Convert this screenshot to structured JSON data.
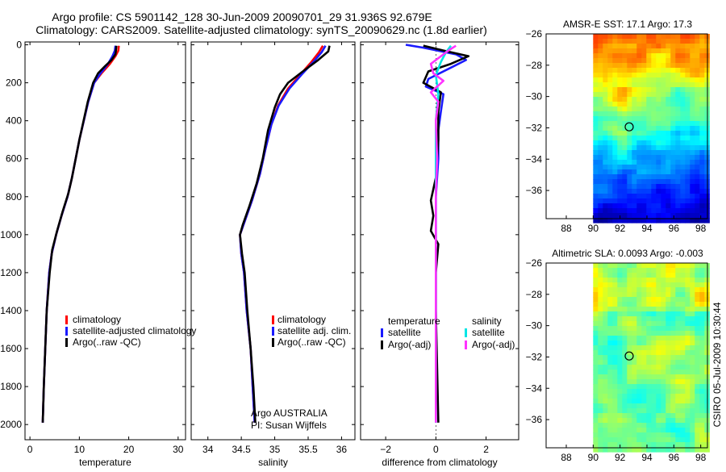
{
  "header": {
    "line1": "Argo profile: CS 5901142_128 30-Jun-2009 20090701_29 31.936S 92.679E",
    "line2": "Climatology: CARS2009. Satellite-adjusted climatology: synTS_20090629.nc (1.8d earlier)"
  },
  "colors": {
    "red": "#ff0000",
    "blue": "#1a1aff",
    "black": "#000000",
    "cyan": "#00e5e5",
    "magenta": "#ff33ff"
  },
  "chart_data": [
    {
      "id": "temperature",
      "type": "line",
      "xlabel": "temperature",
      "ylabel": "",
      "xlim": [
        -1,
        31.5
      ],
      "ylim": [
        2080,
        -15
      ],
      "xticks": [
        0,
        10,
        20,
        30
      ],
      "yticks": [
        0,
        200,
        400,
        600,
        800,
        1000,
        1200,
        1400,
        1600,
        1800,
        2000
      ],
      "legend": {
        "placement": "center-left",
        "entries": [
          "climatology",
          "satellite-adjusted climatology",
          "Argo(..raw -QC)"
        ],
        "colors": [
          "red",
          "blue",
          "black"
        ]
      },
      "series": [
        {
          "name": "climatology",
          "color": "red",
          "points": [
            [
              18,
              5
            ],
            [
              17.9,
              30
            ],
            [
              17.3,
              60
            ],
            [
              16.2,
              100
            ],
            [
              14.5,
              150
            ],
            [
              13,
              200
            ],
            [
              11.8,
              300
            ],
            [
              10,
              500
            ],
            [
              8.5,
              700
            ],
            [
              7.6,
              800
            ],
            [
              6.4,
              900
            ],
            [
              5.3,
              1000
            ],
            [
              4.4,
              1100
            ],
            [
              3.9,
              1200
            ],
            [
              3.4,
              1400
            ],
            [
              3.1,
              1600
            ],
            [
              2.8,
              1800
            ],
            [
              2.6,
              1990
            ]
          ]
        },
        {
          "name": "satellite-adjusted climatology",
          "color": "blue",
          "points": [
            [
              17.3,
              5
            ],
            [
              17.2,
              30
            ],
            [
              16.7,
              60
            ],
            [
              15.8,
              100
            ],
            [
              14.3,
              150
            ],
            [
              13,
              200
            ],
            [
              11.8,
              300
            ],
            [
              10,
              500
            ],
            [
              8.5,
              700
            ],
            [
              7.6,
              800
            ],
            [
              6.4,
              900
            ],
            [
              5.3,
              1000
            ],
            [
              4.4,
              1100
            ],
            [
              3.9,
              1200
            ],
            [
              3.4,
              1400
            ],
            [
              3.1,
              1600
            ],
            [
              2.8,
              1800
            ],
            [
              2.6,
              1990
            ]
          ]
        },
        {
          "name": "Argo(..raw -QC)",
          "color": "black",
          "points": [
            [
              17.5,
              5
            ],
            [
              17.4,
              30
            ],
            [
              17.3,
              50
            ],
            [
              16.5,
              80
            ],
            [
              15.3,
              110
            ],
            [
              13.8,
              150
            ],
            [
              12.8,
              200
            ],
            [
              11.7,
              300
            ],
            [
              10,
              500
            ],
            [
              8.5,
              700
            ],
            [
              7.8,
              780
            ],
            [
              6.6,
              880
            ],
            [
              5.5,
              980
            ],
            [
              4.5,
              1080
            ],
            [
              4,
              1200
            ],
            [
              3.4,
              1400
            ],
            [
              3.1,
              1600
            ],
            [
              2.8,
              1800
            ],
            [
              2.6,
              1990
            ]
          ]
        }
      ]
    },
    {
      "id": "salinity",
      "type": "line",
      "xlabel": "salinity",
      "ylabel": "",
      "xlim": [
        33.75,
        36.2
      ],
      "ylim": [
        2080,
        -15
      ],
      "xticks": [
        34,
        34.5,
        35,
        35.5,
        36
      ],
      "yticks": [
        0,
        200,
        400,
        600,
        800,
        1000,
        1200,
        1400,
        1600,
        1800,
        2000
      ],
      "legend": {
        "placement": "center-right",
        "entries": [
          "climatology",
          "satellite adj. clim.",
          "Argo(..raw -QC)"
        ],
        "colors": [
          "red",
          "blue",
          "black"
        ]
      },
      "series": [
        {
          "name": "climatology",
          "color": "red",
          "points": [
            [
              35.72,
              5
            ],
            [
              35.66,
              40
            ],
            [
              35.55,
              90
            ],
            [
              35.4,
              150
            ],
            [
              35.2,
              230
            ],
            [
              35.05,
              320
            ],
            [
              34.95,
              420
            ],
            [
              34.86,
              550
            ],
            [
              34.78,
              680
            ],
            [
              34.66,
              820
            ],
            [
              34.55,
              930
            ],
            [
              34.48,
              1000
            ],
            [
              34.5,
              1100
            ],
            [
              34.54,
              1200
            ],
            [
              34.58,
              1400
            ],
            [
              34.64,
              1600
            ],
            [
              34.67,
              1800
            ],
            [
              34.7,
              1990
            ]
          ]
        },
        {
          "name": "satellite adj. clim.",
          "color": "blue",
          "points": [
            [
              35.76,
              5
            ],
            [
              35.7,
              40
            ],
            [
              35.58,
              90
            ],
            [
              35.42,
              150
            ],
            [
              35.22,
              230
            ],
            [
              35.06,
              320
            ],
            [
              34.95,
              420
            ],
            [
              34.86,
              550
            ],
            [
              34.78,
              680
            ],
            [
              34.66,
              820
            ],
            [
              34.55,
              930
            ],
            [
              34.48,
              1000
            ],
            [
              34.5,
              1100
            ],
            [
              34.54,
              1200
            ],
            [
              34.58,
              1400
            ],
            [
              34.64,
              1600
            ],
            [
              34.67,
              1800
            ],
            [
              34.7,
              1990
            ]
          ]
        },
        {
          "name": "Argo(..raw -QC)",
          "color": "black",
          "points": [
            [
              35.82,
              5
            ],
            [
              35.8,
              35
            ],
            [
              35.65,
              80
            ],
            [
              35.42,
              140
            ],
            [
              35.2,
              200
            ],
            [
              35.08,
              260
            ],
            [
              35.0,
              330
            ],
            [
              34.9,
              450
            ],
            [
              34.82,
              600
            ],
            [
              34.73,
              730
            ],
            [
              34.62,
              850
            ],
            [
              34.52,
              950
            ],
            [
              34.48,
              1000
            ],
            [
              34.51,
              1100
            ],
            [
              34.55,
              1200
            ],
            [
              34.59,
              1400
            ],
            [
              34.64,
              1600
            ],
            [
              34.68,
              1800
            ],
            [
              34.71,
              1990
            ]
          ]
        }
      ]
    },
    {
      "id": "difference",
      "type": "line",
      "xlabel": "difference from climatology",
      "ylabel": "",
      "xlim": [
        -3,
        3.3
      ],
      "ylim": [
        2080,
        -15
      ],
      "xticks": [
        -2,
        0,
        2
      ],
      "yticks": [
        0,
        200,
        400,
        600,
        800,
        1000,
        1200,
        1400,
        1600,
        1800,
        2000
      ],
      "legend": {
        "placement": "center",
        "groups": [
          {
            "title": "temperature",
            "entries": [
              "satellite",
              "Argo(-adj)"
            ],
            "colors": [
              "blue",
              "black"
            ]
          },
          {
            "title": "salinity",
            "entries": [
              "satellite",
              "Argo(-adj)"
            ],
            "colors": [
              "cyan",
              "magenta"
            ]
          }
        ]
      },
      "series": [
        {
          "name": "temperature satellite",
          "color": "blue",
          "points": [
            [
              -1.2,
              0
            ],
            [
              -0.5,
              15
            ],
            [
              0.8,
              50
            ],
            [
              1.2,
              80
            ],
            [
              0.6,
              120
            ],
            [
              -0.3,
              180
            ],
            [
              -0.4,
              220
            ],
            [
              0.3,
              260
            ],
            [
              0.2,
              350
            ],
            [
              0.1,
              450
            ],
            [
              0.1,
              600
            ],
            [
              0,
              800
            ],
            [
              0,
              1000
            ],
            [
              0,
              1300
            ],
            [
              0,
              1600
            ],
            [
              0,
              1990
            ]
          ]
        },
        {
          "name": "temperature Argo(-adj)",
          "color": "black",
          "points": [
            [
              -0.5,
              5
            ],
            [
              0.3,
              30
            ],
            [
              1.3,
              60
            ],
            [
              0.6,
              100
            ],
            [
              -0.3,
              140
            ],
            [
              -0.5,
              200
            ],
            [
              0.2,
              250
            ],
            [
              0.1,
              350
            ],
            [
              0.1,
              500
            ],
            [
              0,
              700
            ],
            [
              -0.2,
              820
            ],
            [
              -0.1,
              900
            ],
            [
              -0.2,
              980
            ],
            [
              0.1,
              1050
            ],
            [
              0,
              1200
            ],
            [
              0,
              1400
            ],
            [
              0.1,
              1990
            ]
          ]
        },
        {
          "name": "salinity satellite",
          "color": "cyan",
          "points": [
            [
              0.6,
              5
            ],
            [
              0.4,
              40
            ],
            [
              0.2,
              90
            ],
            [
              0,
              160
            ],
            [
              0.1,
              260
            ],
            [
              0,
              400
            ],
            [
              0,
              600
            ],
            [
              0,
              900
            ],
            [
              0,
              1200
            ],
            [
              0,
              1600
            ],
            [
              0,
              1990
            ]
          ]
        },
        {
          "name": "salinity Argo(-adj)",
          "color": "magenta",
          "points": [
            [
              0.8,
              5
            ],
            [
              0.5,
              30
            ],
            [
              -0.2,
              100
            ],
            [
              -0.1,
              150
            ],
            [
              0.3,
              190
            ],
            [
              -0.2,
              250
            ],
            [
              0.1,
              300
            ],
            [
              0,
              400
            ],
            [
              0.05,
              600
            ],
            [
              0,
              800
            ],
            [
              0,
              1200
            ],
            [
              0,
              1990
            ]
          ]
        }
      ]
    },
    {
      "id": "sst_map",
      "type": "heatmap",
      "title": "AMSR-E SST: 17.1 Argo: 17.3",
      "xlim": [
        86.5,
        98.5
      ],
      "ylim": [
        -37.8,
        -26
      ],
      "xticks": [
        88,
        90,
        92,
        94,
        96,
        98
      ],
      "yticks": [
        -26,
        -28,
        -30,
        -32,
        -34,
        -36
      ],
      "data_west_edge": 90,
      "marker": [
        92.679,
        -31.936
      ]
    },
    {
      "id": "sla_map",
      "type": "heatmap",
      "title": "Altimetric SLA: 0.0093 Argo: -0.003",
      "xlim": [
        86.5,
        98.5
      ],
      "ylim": [
        -37.8,
        -26
      ],
      "xticks": [
        88,
        90,
        92,
        94,
        96,
        98
      ],
      "yticks": [
        -26,
        -28,
        -30,
        -32,
        -34,
        -36
      ],
      "data_west_edge": 90,
      "marker": [
        92.679,
        -31.936
      ]
    }
  ],
  "credits": {
    "line1": "Argo AUSTRALIA",
    "line2": "PI: Susan Wijffels"
  },
  "side_label": "CSIRO 05-Jul-2009 10:30:44"
}
